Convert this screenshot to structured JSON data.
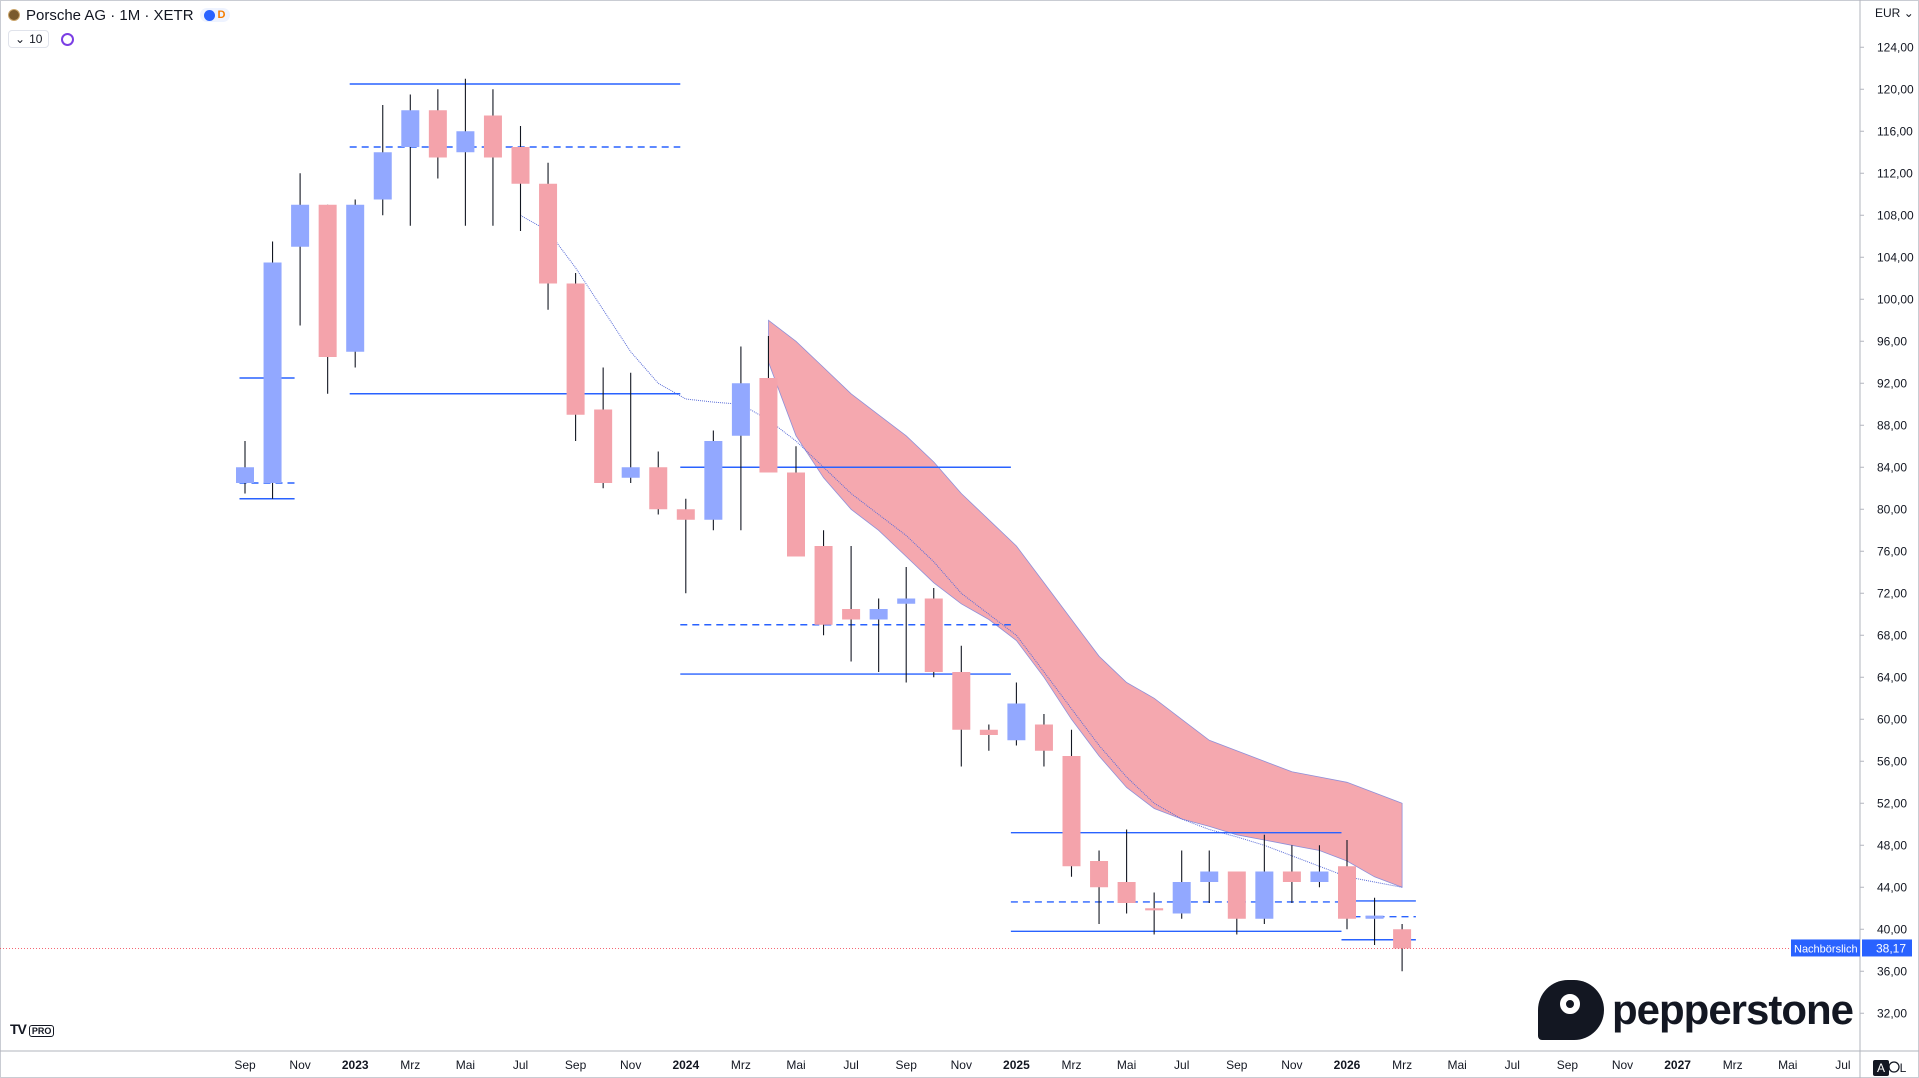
{
  "header": {
    "symbol": "Porsche AG · 1M · XETR",
    "badge_d": "D",
    "indicator_count": "10"
  },
  "axis": {
    "currency": "EUR",
    "price_label": "38,17",
    "session_label": "Nachbörslich",
    "btn_a": "A",
    "btn_l": "L"
  },
  "branding": {
    "tv": "TV",
    "tv_pro": "PRO",
    "broker": "pepperstone"
  },
  "chart_data": {
    "type": "candlestick",
    "title": "Porsche AG · 1M · XETR",
    "ylim": [
      28.5,
      128.5
    ],
    "y_ticks": [
      124,
      120,
      116,
      112,
      108,
      104,
      100,
      96,
      92,
      88,
      84,
      80,
      76,
      72,
      68,
      64,
      60,
      56,
      52,
      48,
      44,
      40,
      36,
      32
    ],
    "x_ticks": [
      {
        "label": "Sep",
        "i": 0
      },
      {
        "label": "Nov",
        "i": 2
      },
      {
        "label": "2023",
        "i": 4,
        "bold": true
      },
      {
        "label": "Mrz",
        "i": 6
      },
      {
        "label": "Mai",
        "i": 8
      },
      {
        "label": "Jul",
        "i": 10
      },
      {
        "label": "Sep",
        "i": 12
      },
      {
        "label": "Nov",
        "i": 14
      },
      {
        "label": "2024",
        "i": 16,
        "bold": true
      },
      {
        "label": "Mrz",
        "i": 18
      },
      {
        "label": "Mai",
        "i": 20
      },
      {
        "label": "Jul",
        "i": 22
      },
      {
        "label": "Sep",
        "i": 24
      },
      {
        "label": "Nov",
        "i": 26
      },
      {
        "label": "2025",
        "i": 28,
        "bold": true
      },
      {
        "label": "Mrz",
        "i": 30
      },
      {
        "label": "Mai",
        "i": 32
      },
      {
        "label": "Jul",
        "i": 34
      },
      {
        "label": "Sep",
        "i": 36
      },
      {
        "label": "Nov",
        "i": 38
      },
      {
        "label": "2026",
        "i": 40,
        "bold": true
      },
      {
        "label": "Mrz",
        "i": 42
      },
      {
        "label": "Mai",
        "i": 44
      },
      {
        "label": "Jul",
        "i": 46
      },
      {
        "label": "Sep",
        "i": 48
      },
      {
        "label": "Nov",
        "i": 50
      },
      {
        "label": "2027",
        "i": 52,
        "bold": true
      },
      {
        "label": "Mrz",
        "i": 54
      },
      {
        "label": "Mai",
        "i": 56
      },
      {
        "label": "Jul",
        "i": 58
      }
    ],
    "candles": [
      {
        "date": "2022-09",
        "o": 82.5,
        "h": 86.5,
        "l": 81.5,
        "c": 84.0
      },
      {
        "date": "2022-10",
        "o": 82.5,
        "h": 105.5,
        "l": 81.0,
        "c": 103.5
      },
      {
        "date": "2022-11",
        "o": 105.0,
        "h": 112.0,
        "l": 97.5,
        "c": 109.0
      },
      {
        "date": "2022-12",
        "o": 109.0,
        "h": 109.0,
        "l": 91.0,
        "c": 94.5
      },
      {
        "date": "2023-01",
        "o": 95.0,
        "h": 109.5,
        "l": 93.5,
        "c": 109.0
      },
      {
        "date": "2023-02",
        "o": 109.5,
        "h": 118.5,
        "l": 108.0,
        "c": 114.0
      },
      {
        "date": "2023-03",
        "o": 114.5,
        "h": 119.5,
        "l": 107.0,
        "c": 118.0
      },
      {
        "date": "2023-04",
        "o": 118.0,
        "h": 120.0,
        "l": 111.5,
        "c": 113.5
      },
      {
        "date": "2023-05",
        "o": 114.0,
        "h": 121.0,
        "l": 107.0,
        "c": 116.0
      },
      {
        "date": "2023-06",
        "o": 117.5,
        "h": 120.0,
        "l": 107.0,
        "c": 113.5
      },
      {
        "date": "2023-07",
        "o": 114.5,
        "h": 116.5,
        "l": 106.5,
        "c": 111.0
      },
      {
        "date": "2023-08",
        "o": 111.0,
        "h": 113.0,
        "l": 99.0,
        "c": 101.5
      },
      {
        "date": "2023-09",
        "o": 101.5,
        "h": 102.5,
        "l": 86.5,
        "c": 89.0
      },
      {
        "date": "2023-10",
        "o": 89.5,
        "h": 93.5,
        "l": 82.0,
        "c": 82.5
      },
      {
        "date": "2023-11",
        "o": 83.0,
        "h": 93.0,
        "l": 82.5,
        "c": 84.0
      },
      {
        "date": "2023-12",
        "o": 84.0,
        "h": 85.5,
        "l": 79.5,
        "c": 80.0
      },
      {
        "date": "2024-01",
        "o": 80.0,
        "h": 81.0,
        "l": 72.0,
        "c": 79.0
      },
      {
        "date": "2024-02",
        "o": 79.0,
        "h": 87.5,
        "l": 78.0,
        "c": 86.5
      },
      {
        "date": "2024-03",
        "o": 87.0,
        "h": 95.5,
        "l": 78.0,
        "c": 92.0
      },
      {
        "date": "2024-04",
        "o": 92.5,
        "h": 96.5,
        "l": 83.5,
        "c": 83.5
      },
      {
        "date": "2024-05",
        "o": 83.5,
        "h": 86.0,
        "l": 75.5,
        "c": 75.5
      },
      {
        "date": "2024-06",
        "o": 76.5,
        "h": 78.0,
        "l": 68.0,
        "c": 69.0
      },
      {
        "date": "2024-07",
        "o": 70.5,
        "h": 76.5,
        "l": 65.5,
        "c": 69.5
      },
      {
        "date": "2024-08",
        "o": 69.5,
        "h": 71.5,
        "l": 64.5,
        "c": 70.5
      },
      {
        "date": "2024-09",
        "o": 71.0,
        "h": 74.5,
        "l": 63.5,
        "c": 71.5
      },
      {
        "date": "2024-10",
        "o": 71.5,
        "h": 72.5,
        "l": 64.0,
        "c": 64.5
      },
      {
        "date": "2024-11",
        "o": 64.5,
        "h": 67.0,
        "l": 55.5,
        "c": 59.0
      },
      {
        "date": "2024-12",
        "o": 59.0,
        "h": 59.5,
        "l": 57.0,
        "c": 58.5
      },
      {
        "date": "2025-01",
        "o": 58.0,
        "h": 63.5,
        "l": 57.5,
        "c": 61.5
      },
      {
        "date": "2025-02",
        "o": 59.5,
        "h": 60.5,
        "l": 55.5,
        "c": 57.0
      },
      {
        "date": "2025-03",
        "o": 56.5,
        "h": 59.0,
        "l": 45.0,
        "c": 46.0
      },
      {
        "date": "2025-04",
        "o": 46.5,
        "h": 47.5,
        "l": 40.5,
        "c": 44.0
      },
      {
        "date": "2025-05",
        "o": 44.5,
        "h": 49.5,
        "l": 41.5,
        "c": 42.5
      },
      {
        "date": "2025-06",
        "o": 42.0,
        "h": 43.5,
        "l": 39.5,
        "c": 41.8
      },
      {
        "date": "2025-07",
        "o": 41.5,
        "h": 47.5,
        "l": 41.0,
        "c": 44.5
      },
      {
        "date": "2025-08",
        "o": 44.5,
        "h": 47.5,
        "l": 42.5,
        "c": 45.5
      },
      {
        "date": "2025-09",
        "o": 45.5,
        "h": 45.5,
        "l": 39.5,
        "c": 41.0
      },
      {
        "date": "2025-10",
        "o": 41.0,
        "h": 49.0,
        "l": 40.5,
        "c": 45.5
      },
      {
        "date": "2025-11",
        "o": 45.5,
        "h": 48.0,
        "l": 42.5,
        "c": 44.5
      },
      {
        "date": "2025-12",
        "o": 44.5,
        "h": 48.0,
        "l": 44.0,
        "c": 45.5
      },
      {
        "date": "2026-01",
        "o": 46.0,
        "h": 48.5,
        "l": 40.0,
        "c": 41.0
      },
      {
        "date": "2026-02",
        "o": 41.0,
        "h": 43.0,
        "l": 38.5,
        "c": 41.3
      },
      {
        "date": "2026-03",
        "o": 40.0,
        "h": 40.5,
        "l": 36.0,
        "c": 38.17
      }
    ],
    "ma_line": [
      {
        "i": 10,
        "v": 108.0
      },
      {
        "i": 11,
        "v": 106.5
      },
      {
        "i": 12,
        "v": 103.0
      },
      {
        "i": 13,
        "v": 99.0
      },
      {
        "i": 14,
        "v": 95.0
      },
      {
        "i": 15,
        "v": 92.0
      },
      {
        "i": 16,
        "v": 90.5
      },
      {
        "i": 17,
        "v": 90.2
      },
      {
        "i": 18,
        "v": 90.0
      },
      {
        "i": 19,
        "v": 88.5
      },
      {
        "i": 20,
        "v": 86.5
      },
      {
        "i": 21,
        "v": 84.0
      },
      {
        "i": 22,
        "v": 81.5
      },
      {
        "i": 23,
        "v": 79.5
      },
      {
        "i": 24,
        "v": 77.5
      },
      {
        "i": 25,
        "v": 75.0
      },
      {
        "i": 26,
        "v": 72.0
      },
      {
        "i": 27,
        "v": 70.0
      },
      {
        "i": 28,
        "v": 68.0
      },
      {
        "i": 29,
        "v": 64.5
      },
      {
        "i": 30,
        "v": 61.0
      },
      {
        "i": 31,
        "v": 57.5
      },
      {
        "i": 32,
        "v": 54.5
      },
      {
        "i": 33,
        "v": 52.0
      },
      {
        "i": 34,
        "v": 50.5
      },
      {
        "i": 35,
        "v": 49.5
      },
      {
        "i": 36,
        "v": 48.8
      },
      {
        "i": 37,
        "v": 48.0
      },
      {
        "i": 38,
        "v": 47.0
      },
      {
        "i": 39,
        "v": 46.0
      },
      {
        "i": 40,
        "v": 45.0
      },
      {
        "i": 41,
        "v": 44.5
      },
      {
        "i": 42,
        "v": 44.0
      }
    ],
    "band": {
      "upper": [
        {
          "i": 19,
          "v": 98.0
        },
        {
          "i": 20,
          "v": 96.0
        },
        {
          "i": 21,
          "v": 93.5
        },
        {
          "i": 22,
          "v": 91.0
        },
        {
          "i": 23,
          "v": 89.0
        },
        {
          "i": 24,
          "v": 87.0
        },
        {
          "i": 25,
          "v": 84.5
        },
        {
          "i": 26,
          "v": 81.5
        },
        {
          "i": 27,
          "v": 79.0
        },
        {
          "i": 28,
          "v": 76.5
        },
        {
          "i": 29,
          "v": 73.0
        },
        {
          "i": 30,
          "v": 69.5
        },
        {
          "i": 31,
          "v": 66.0
        },
        {
          "i": 32,
          "v": 63.5
        },
        {
          "i": 33,
          "v": 62.0
        },
        {
          "i": 34,
          "v": 60.0
        },
        {
          "i": 35,
          "v": 58.0
        },
        {
          "i": 36,
          "v": 57.0
        },
        {
          "i": 37,
          "v": 56.0
        },
        {
          "i": 38,
          "v": 55.0
        },
        {
          "i": 39,
          "v": 54.5
        },
        {
          "i": 40,
          "v": 54.0
        },
        {
          "i": 41,
          "v": 53.0
        },
        {
          "i": 42,
          "v": 52.0
        }
      ],
      "lower": [
        {
          "i": 19,
          "v": 94.0
        },
        {
          "i": 20,
          "v": 87.0
        },
        {
          "i": 21,
          "v": 83.0
        },
        {
          "i": 22,
          "v": 80.0
        },
        {
          "i": 23,
          "v": 78.0
        },
        {
          "i": 24,
          "v": 75.5
        },
        {
          "i": 25,
          "v": 73.0
        },
        {
          "i": 26,
          "v": 71.0
        },
        {
          "i": 27,
          "v": 69.5
        },
        {
          "i": 28,
          "v": 67.5
        },
        {
          "i": 29,
          "v": 64.0
        },
        {
          "i": 30,
          "v": 60.0
        },
        {
          "i": 31,
          "v": 56.5
        },
        {
          "i": 32,
          "v": 53.5
        },
        {
          "i": 33,
          "v": 51.5
        },
        {
          "i": 34,
          "v": 50.5
        },
        {
          "i": 35,
          "v": 49.8
        },
        {
          "i": 36,
          "v": 49.0
        },
        {
          "i": 37,
          "v": 48.5
        },
        {
          "i": 38,
          "v": 48.0
        },
        {
          "i": 39,
          "v": 47.5
        },
        {
          "i": 40,
          "v": 46.5
        },
        {
          "i": 41,
          "v": 45.0
        },
        {
          "i": 42,
          "v": 44.0
        }
      ]
    },
    "levels": [
      {
        "i0": -0.2,
        "i1": 1.8,
        "v": 92.5,
        "style": "solid"
      },
      {
        "i0": -0.2,
        "i1": 1.8,
        "v": 82.5,
        "style": "dashed"
      },
      {
        "i0": -0.2,
        "i1": 1.8,
        "v": 81.0,
        "style": "solid"
      },
      {
        "i0": 3.8,
        "i1": 15.8,
        "v": 120.5,
        "style": "solid"
      },
      {
        "i0": 3.8,
        "i1": 15.8,
        "v": 114.5,
        "style": "dashed"
      },
      {
        "i0": 3.8,
        "i1": 15.8,
        "v": 91.0,
        "style": "solid"
      },
      {
        "i0": 15.8,
        "i1": 27.8,
        "v": 84.0,
        "style": "solid"
      },
      {
        "i0": 15.8,
        "i1": 27.8,
        "v": 69.0,
        "style": "dashed"
      },
      {
        "i0": 15.8,
        "i1": 27.8,
        "v": 64.3,
        "style": "solid"
      },
      {
        "i0": 27.8,
        "i1": 39.8,
        "v": 49.2,
        "style": "solid"
      },
      {
        "i0": 27.8,
        "i1": 39.8,
        "v": 42.6,
        "style": "dashed"
      },
      {
        "i0": 27.8,
        "i1": 39.8,
        "v": 39.8,
        "style": "solid"
      },
      {
        "i0": 39.8,
        "i1": 42.5,
        "v": 42.7,
        "style": "solid"
      },
      {
        "i0": 39.8,
        "i1": 42.5,
        "v": 41.2,
        "style": "dashed"
      },
      {
        "i0": 39.8,
        "i1": 42.5,
        "v": 39.0,
        "style": "solid"
      }
    ],
    "last_price": 38.17,
    "colors": {
      "up": "#92a8ff",
      "down": "#f4a3ab",
      "level": "#2962ff",
      "band": "#f4a3ab",
      "ma": "#5b6ed8",
      "price_line": "#f23645"
    },
    "grid": false,
    "legend": "none"
  }
}
